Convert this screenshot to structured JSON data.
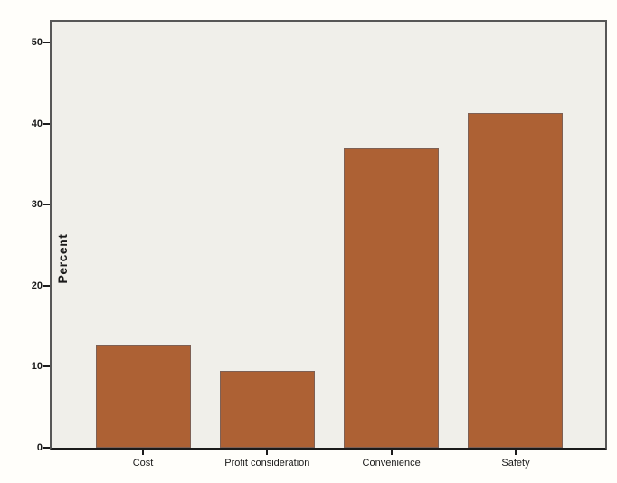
{
  "figure": {
    "background": "#fffefa"
  },
  "chart_data": {
    "type": "bar",
    "title": "",
    "categories": [
      "Cost",
      "Profit consideration",
      "Convenience",
      "Safety"
    ],
    "values": [
      12.7,
      9.5,
      37.0,
      41.3
    ],
    "series_name": "Percent",
    "xlabel": "",
    "ylabel": "Percent",
    "yticks": [
      "0",
      "10",
      "20",
      "30",
      "40",
      "50"
    ],
    "ytick_values": [
      0,
      10,
      20,
      30,
      40,
      50
    ],
    "ylim": [
      0,
      50
    ],
    "axis_top_value": 52.6,
    "grid": false,
    "legend": "none",
    "bar_color": "#ad6134",
    "bar_border_color": "#7e6054",
    "plot_background": "#f0efea",
    "frame_color": "#575757",
    "axis_color": "#1b1b1b",
    "text_color": "#1a1a1a"
  }
}
